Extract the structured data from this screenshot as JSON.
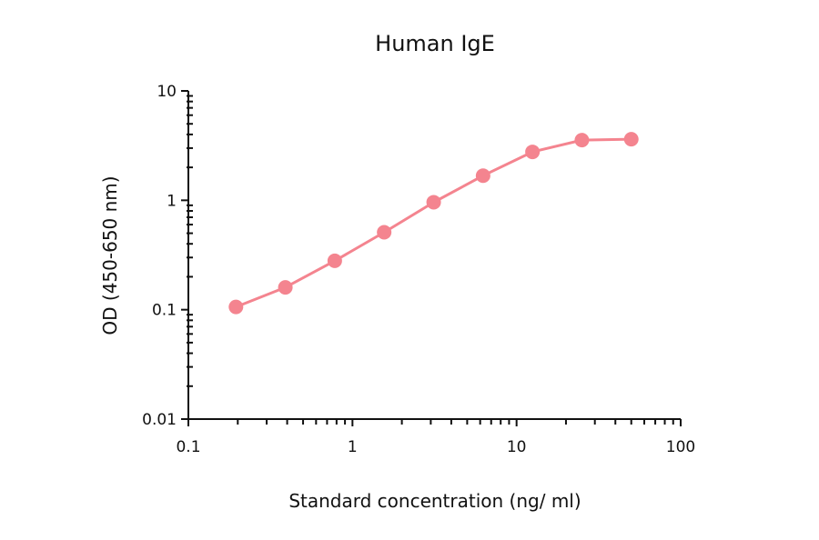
{
  "chart_data": {
    "type": "line",
    "title": "Human IgE",
    "xlabel": "Standard concentration (ng/ ml)",
    "ylabel": "OD (450-650 nm)",
    "xscale": "log",
    "yscale": "log",
    "xlim": [
      0.1,
      100
    ],
    "ylim": [
      0.01,
      10
    ],
    "xticks": [
      "0.1",
      "1",
      "10",
      "100"
    ],
    "yticks": [
      "0.01",
      "0.1",
      "1",
      "10"
    ],
    "grid": false,
    "legend": null,
    "series": [
      {
        "name": "Human IgE",
        "color": "#F4848F",
        "marker": "circle",
        "x": [
          0.195,
          0.39,
          0.78,
          1.56,
          3.125,
          6.25,
          12.5,
          25,
          50
        ],
        "y": [
          0.106,
          0.16,
          0.28,
          0.51,
          0.96,
          1.68,
          2.77,
          3.55,
          3.62
        ]
      }
    ]
  }
}
